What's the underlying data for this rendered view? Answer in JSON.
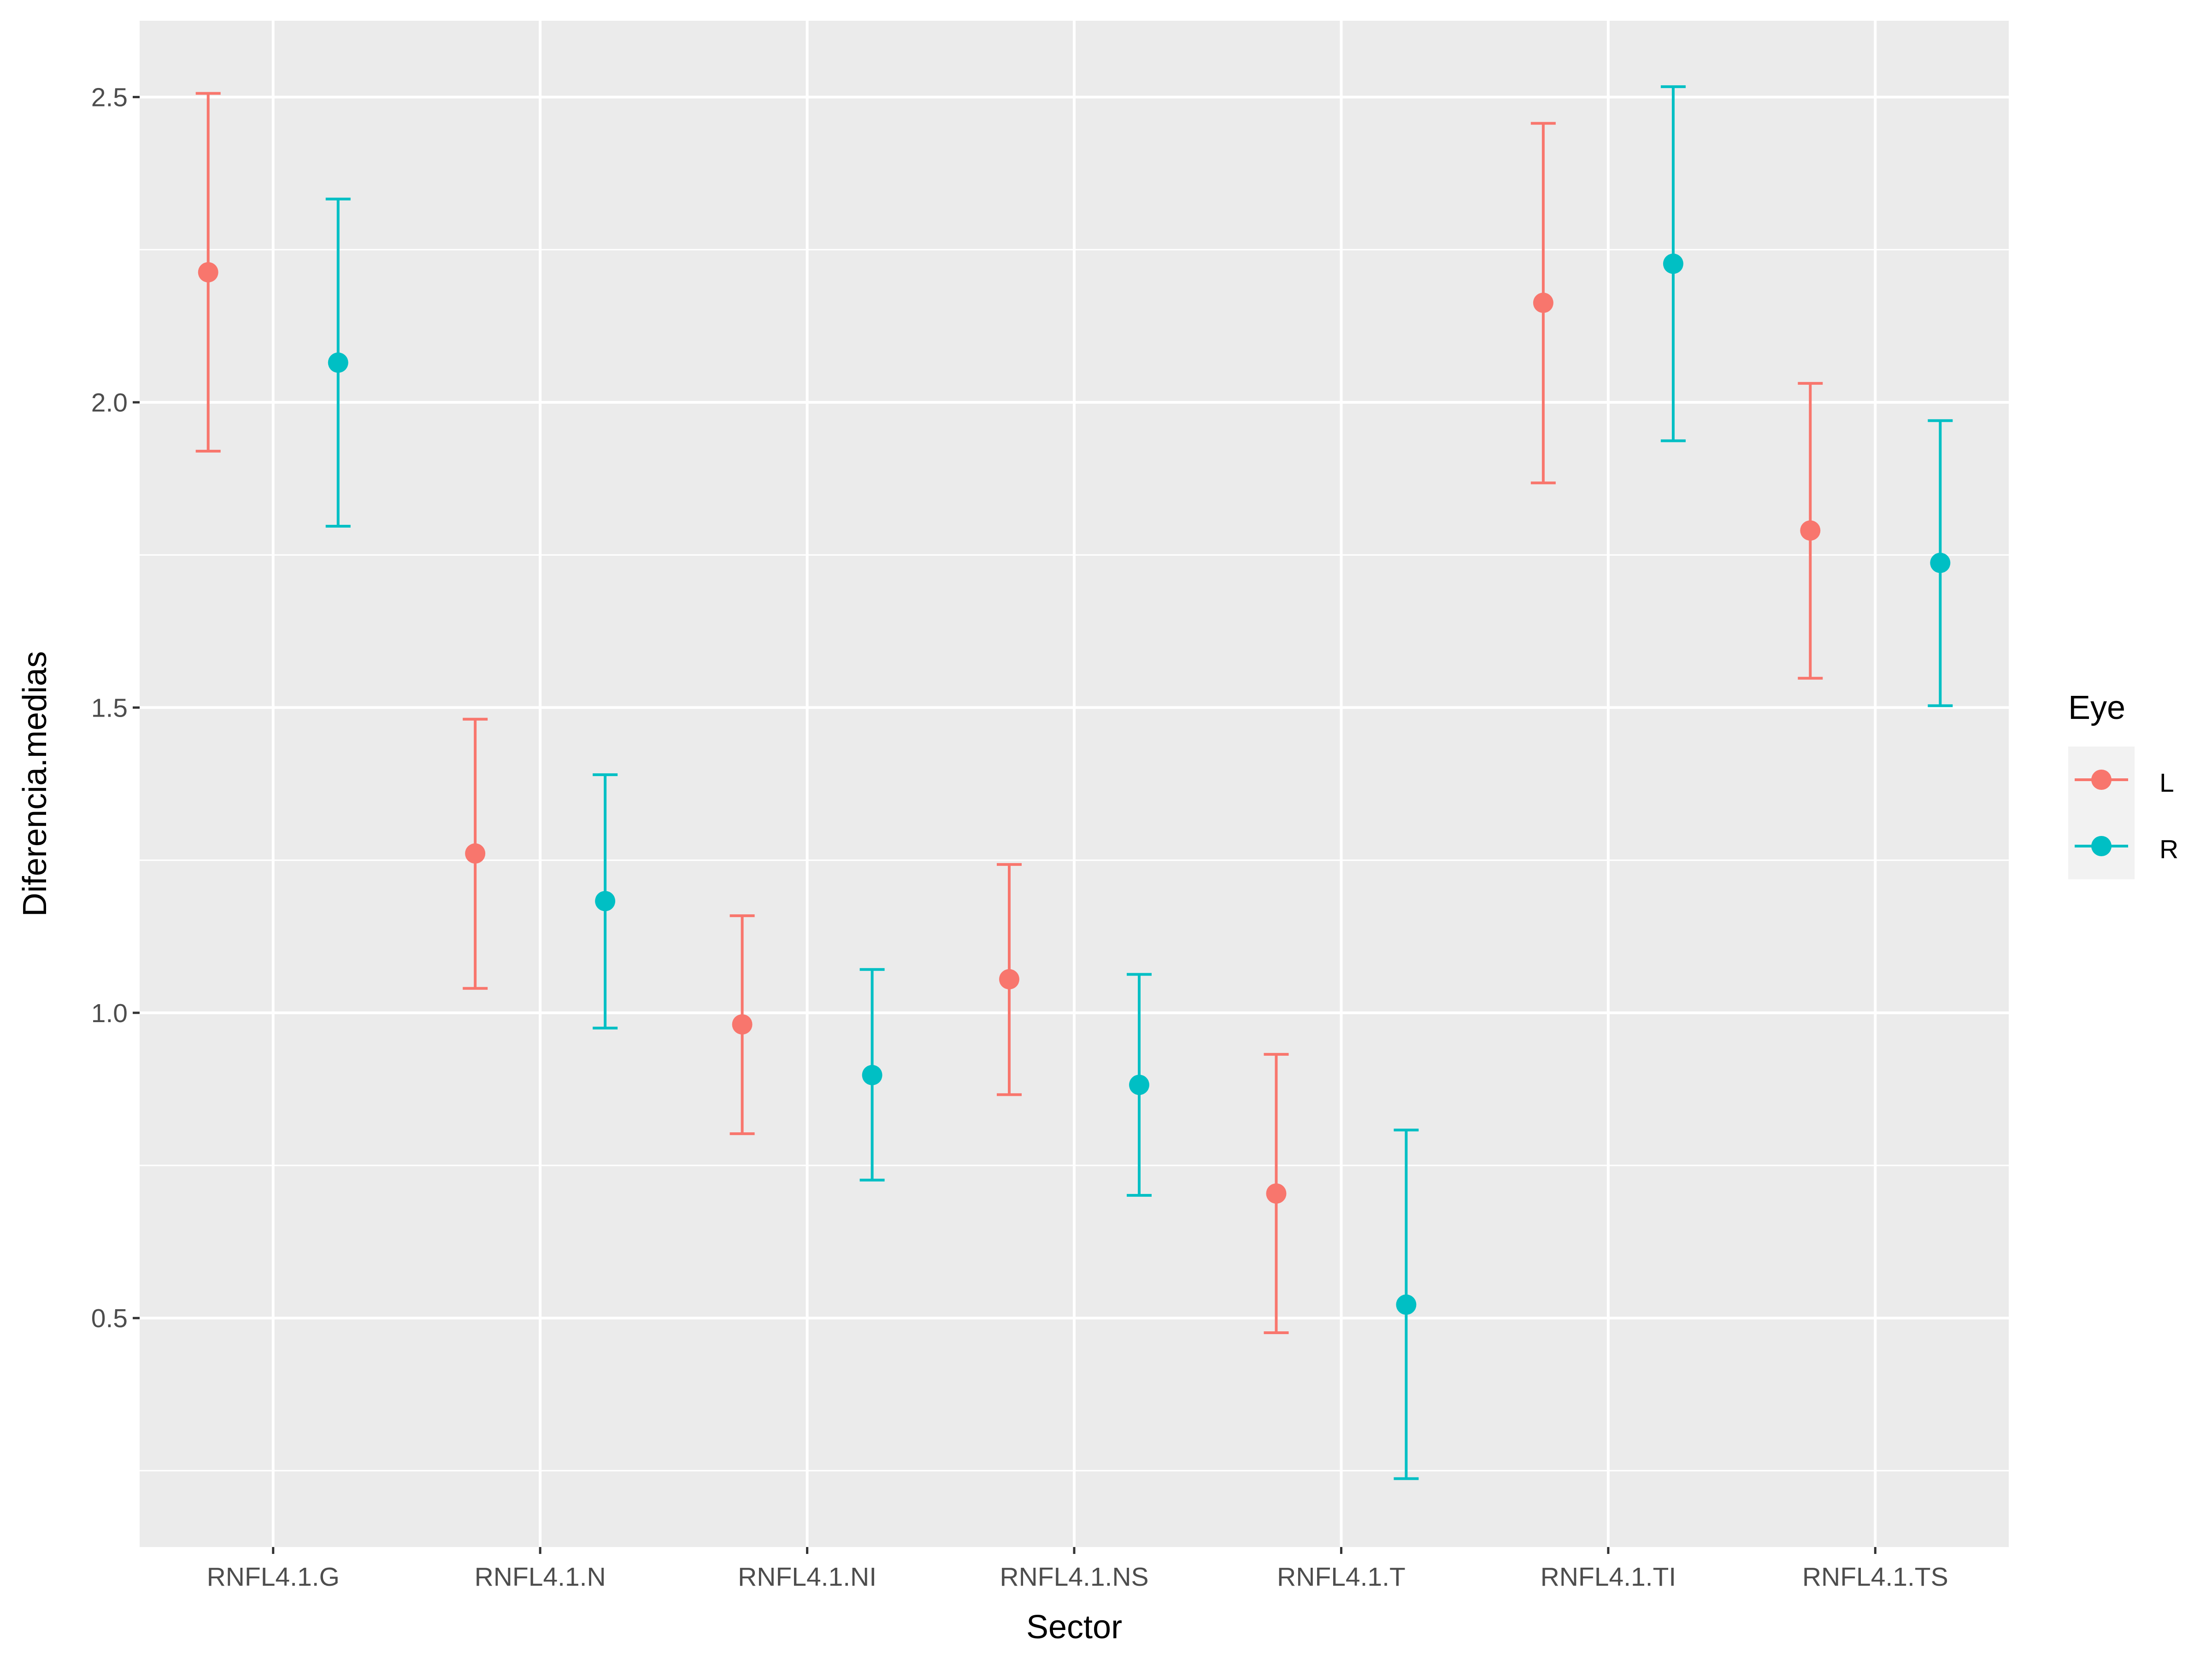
{
  "chart_data": {
    "type": "scatter",
    "title": "",
    "xlabel": "Sector",
    "ylabel": "Diferencia.medias",
    "categories": [
      "RNFL4.1.G",
      "RNFL4.1.N",
      "RNFL4.1.NI",
      "RNFL4.1.NS",
      "RNFL4.1.T",
      "RNFL4.1.TI",
      "RNFL4.1.TS"
    ],
    "ylim": [
      0.125,
      2.625
    ],
    "yticks": [
      0.5,
      1.0,
      1.5,
      2.0,
      2.5
    ],
    "ytick_labels": [
      "0.5",
      "1.0",
      "1.5",
      "2.0",
      "2.5"
    ],
    "grid": true,
    "error_bars": true,
    "legend": {
      "title": "Eye",
      "position": "right"
    },
    "series": [
      {
        "name": "L",
        "color": "#F8766D",
        "values": [
          2.213,
          1.261,
          0.981,
          1.055,
          0.704,
          2.163,
          1.79
        ],
        "lower": [
          1.92,
          1.04,
          0.802,
          0.866,
          0.476,
          1.868,
          1.548
        ],
        "upper": [
          2.506,
          1.481,
          1.159,
          1.243,
          0.932,
          2.457,
          2.031
        ]
      },
      {
        "name": "R",
        "color": "#00BFC4",
        "values": [
          2.065,
          1.183,
          0.898,
          0.882,
          0.522,
          2.227,
          1.737
        ],
        "lower": [
          1.797,
          0.975,
          0.726,
          0.701,
          0.237,
          1.937,
          1.503
        ],
        "upper": [
          2.333,
          1.39,
          1.071,
          1.063,
          0.808,
          2.517,
          1.97
        ]
      }
    ]
  }
}
